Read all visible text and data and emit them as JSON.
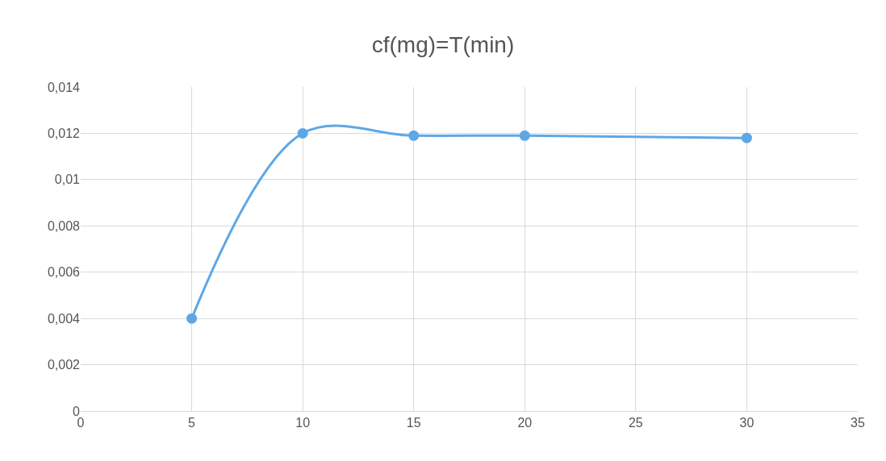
{
  "chart_data": {
    "type": "line",
    "title": "cf(mg)=T(min)",
    "x": [
      5,
      10,
      15,
      20,
      30
    ],
    "series": [
      {
        "color": "#5ea7e6",
        "values": [
          0.004,
          0.012,
          0.0119,
          0.0119,
          0.0118
        ]
      }
    ],
    "xlim": [
      0,
      35
    ],
    "xticks": [
      0,
      5,
      10,
      15,
      20,
      25,
      30,
      35
    ],
    "ylim": [
      0,
      0.014
    ],
    "yticks": [
      {
        "value": 0,
        "label": "0"
      },
      {
        "value": 0.002,
        "label": "0,002"
      },
      {
        "value": 0.004,
        "label": "0,004"
      },
      {
        "value": 0.006,
        "label": "0,006"
      },
      {
        "value": 0.008,
        "label": "0,008"
      },
      {
        "value": 0.01,
        "label": "0,01"
      },
      {
        "value": 0.012,
        "label": "0,012"
      },
      {
        "value": 0.014,
        "label": "0,014"
      }
    ],
    "grid": true,
    "marker": "circle",
    "line_style": "solid"
  }
}
